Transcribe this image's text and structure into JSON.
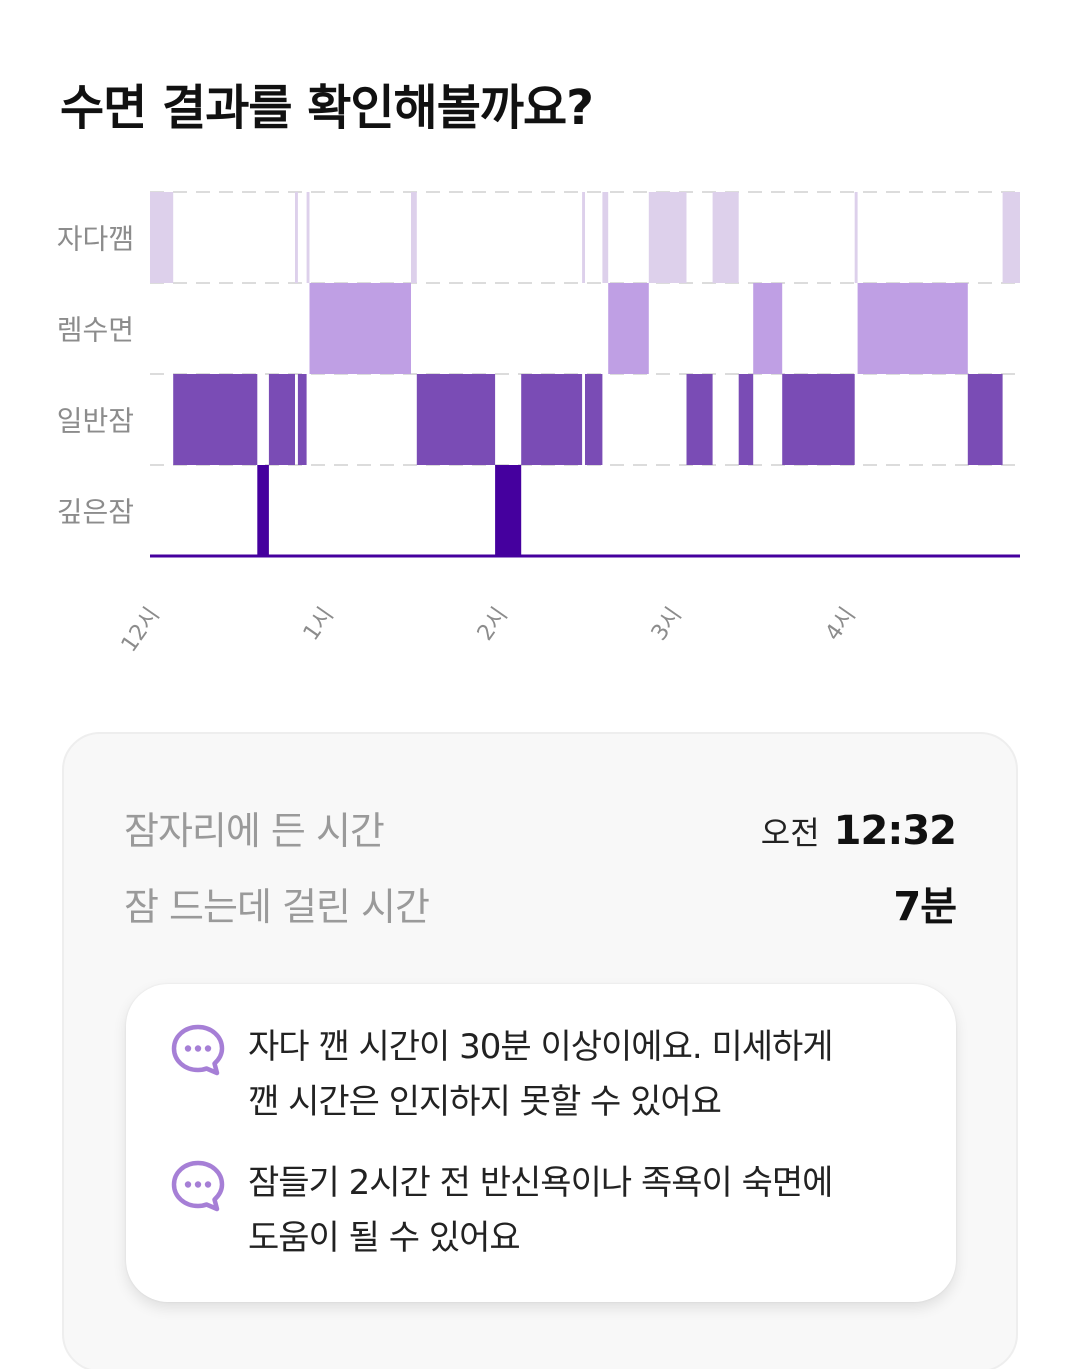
{
  "header": {
    "title": "수면 결과를 확인해볼까요?"
  },
  "colors": {
    "awake": "#ddd0eb",
    "rem": "#bf9fe4",
    "light": "#7a4cb5",
    "deep": "#45009e",
    "grid": "#dcdcdc",
    "axis_label": "#8c8c8c",
    "icon": "#a67fd6"
  },
  "chart_data": {
    "type": "hypnogram",
    "stages": [
      "자다깸",
      "렘수면",
      "일반잠",
      "깊은잠"
    ],
    "x_ticks": [
      {
        "label": "12시",
        "minutes": 0
      },
      {
        "label": "1시",
        "minutes": 60
      },
      {
        "label": "2시",
        "minutes": 120
      },
      {
        "label": "3시",
        "minutes": 180
      },
      {
        "label": "4시",
        "minutes": 240
      }
    ],
    "x_range_minutes": [
      0,
      300
    ],
    "segments": [
      {
        "stage": "자다깸",
        "start": 0,
        "end": 8
      },
      {
        "stage": "일반잠",
        "start": 8,
        "end": 37
      },
      {
        "stage": "깊은잠",
        "start": 37,
        "end": 41
      },
      {
        "stage": "일반잠",
        "start": 41,
        "end": 50
      },
      {
        "stage": "자다깸",
        "start": 50,
        "end": 51
      },
      {
        "stage": "일반잠",
        "start": 51,
        "end": 54
      },
      {
        "stage": "자다깸",
        "start": 54,
        "end": 55
      },
      {
        "stage": "렘수면",
        "start": 55,
        "end": 90
      },
      {
        "stage": "자다깸",
        "start": 90,
        "end": 92
      },
      {
        "stage": "일반잠",
        "start": 92,
        "end": 119
      },
      {
        "stage": "깊은잠",
        "start": 119,
        "end": 128
      },
      {
        "stage": "일반잠",
        "start": 128,
        "end": 149
      },
      {
        "stage": "자다깸",
        "start": 149,
        "end": 150
      },
      {
        "stage": "일반잠",
        "start": 150,
        "end": 156
      },
      {
        "stage": "자다깸",
        "start": 156,
        "end": 158
      },
      {
        "stage": "일반잠",
        "start": 158,
        "end": 157
      },
      {
        "stage": "렘수면",
        "start": 158,
        "end": 172
      },
      {
        "stage": "자다깸",
        "start": 172,
        "end": 185
      },
      {
        "stage": "일반잠",
        "start": 185,
        "end": 194
      },
      {
        "stage": "자다깸",
        "start": 194,
        "end": 203
      },
      {
        "stage": "일반잠",
        "start": 203,
        "end": 208
      },
      {
        "stage": "렘수면",
        "start": 208,
        "end": 218
      },
      {
        "stage": "일반잠",
        "start": 218,
        "end": 243
      },
      {
        "stage": "자다깸",
        "start": 243,
        "end": 244
      },
      {
        "stage": "렘수면",
        "start": 244,
        "end": 282
      },
      {
        "stage": "일반잠",
        "start": 282,
        "end": 294
      },
      {
        "stage": "자다깸",
        "start": 294,
        "end": 300
      }
    ]
  },
  "summary": {
    "bedtime_label": "잠자리에 든 시간",
    "bedtime_prefix": "오전",
    "bedtime_value": "12:32",
    "latency_label": "잠 드는데 걸린 시간",
    "latency_value": "7분"
  },
  "tips": [
    {
      "icon": "chat-bubble-icon",
      "line1": "자다 깬 시간이 30분 이상이에요. 미세하게",
      "line2": "깬 시간은 인지하지 못할 수 있어요"
    },
    {
      "icon": "chat-bubble-icon",
      "line1": "잠들기 2시간 전 반신욕이나 족욕이 숙면에",
      "line2": "도움이 될 수 있어요"
    }
  ]
}
